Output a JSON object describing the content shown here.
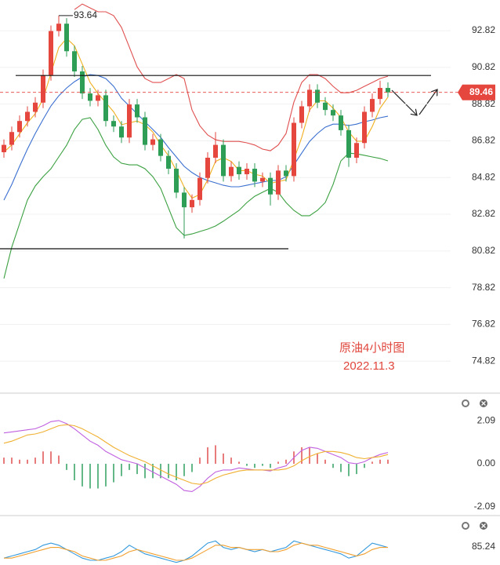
{
  "chart_data": [
    {
      "type": "candlestick",
      "annotations": [
        "原油4小时图",
        "2022.11.3"
      ],
      "max_marker": 93.64,
      "last_price": 89.46,
      "levels": [
        90.38,
        80.94
      ],
      "ylim": [
        73.12,
        94.49
      ],
      "yticks": [
        92.82,
        90.82,
        88.82,
        86.82,
        84.82,
        82.82,
        80.82,
        78.82,
        76.82,
        74.82
      ],
      "grid": true,
      "up_color": "#e5463e",
      "down_color": "#2e9e57",
      "price_color": "#e5463e",
      "candles": [
        [
          86.2,
          86.9,
          85.9,
          86.6
        ],
        [
          86.6,
          87.6,
          86.3,
          87.3
        ],
        [
          87.3,
          88.2,
          87.0,
          87.9
        ],
        [
          87.9,
          88.7,
          87.6,
          88.4
        ],
        [
          88.4,
          89.2,
          88.1,
          88.9
        ],
        [
          88.9,
          90.7,
          88.6,
          90.4
        ],
        [
          90.4,
          93.1,
          90.1,
          92.8
        ],
        [
          92.8,
          93.64,
          92.5,
          93.2
        ],
        [
          93.2,
          93.5,
          91.4,
          91.7
        ],
        [
          91.7,
          92.0,
          90.3,
          90.6
        ],
        [
          90.6,
          90.9,
          89.1,
          89.4
        ],
        [
          89.4,
          89.7,
          88.7,
          89.0
        ],
        [
          89.0,
          89.6,
          88.7,
          89.3
        ],
        [
          89.3,
          89.6,
          87.6,
          87.9
        ],
        [
          87.9,
          88.2,
          87.3,
          87.6
        ],
        [
          87.6,
          87.9,
          86.7,
          87.0
        ],
        [
          87.0,
          89.1,
          86.7,
          88.8
        ],
        [
          88.8,
          89.1,
          87.8,
          88.1
        ],
        [
          88.1,
          88.4,
          86.3,
          86.6
        ],
        [
          86.6,
          87.2,
          86.3,
          86.9
        ],
        [
          86.9,
          87.2,
          85.7,
          86.0
        ],
        [
          86.0,
          86.3,
          85.0,
          85.3
        ],
        [
          85.3,
          85.6,
          83.7,
          84.0
        ],
        [
          84.0,
          84.3,
          81.5,
          83.2
        ],
        [
          83.2,
          83.9,
          82.9,
          83.6
        ],
        [
          83.6,
          85.1,
          83.3,
          84.8
        ],
        [
          84.8,
          86.2,
          84.5,
          85.9
        ],
        [
          85.9,
          87.3,
          85.6,
          86.6
        ],
        [
          86.6,
          86.9,
          84.6,
          84.9
        ],
        [
          84.9,
          85.7,
          84.6,
          85.4
        ],
        [
          85.4,
          85.7,
          84.7,
          85.0
        ],
        [
          85.0,
          85.6,
          84.7,
          85.3
        ],
        [
          85.3,
          85.6,
          84.3,
          84.6
        ],
        [
          84.6,
          85.1,
          84.3,
          84.8
        ],
        [
          84.8,
          85.1,
          83.3,
          83.9
        ],
        [
          83.9,
          85.5,
          83.6,
          85.2
        ],
        [
          85.2,
          85.5,
          84.6,
          84.9
        ],
        [
          84.9,
          88.1,
          84.6,
          87.8
        ],
        [
          87.8,
          89.0,
          87.5,
          88.7
        ],
        [
          88.7,
          89.9,
          88.4,
          89.6
        ],
        [
          89.6,
          89.9,
          88.6,
          88.9
        ],
        [
          88.9,
          89.2,
          88.2,
          88.5
        ],
        [
          88.5,
          88.8,
          87.9,
          88.2
        ],
        [
          88.2,
          88.5,
          87.1,
          87.4
        ],
        [
          87.4,
          87.7,
          85.4,
          85.9
        ],
        [
          85.9,
          87.0,
          85.6,
          86.7
        ],
        [
          86.7,
          88.7,
          86.4,
          88.4
        ],
        [
          88.4,
          89.4,
          88.1,
          89.1
        ],
        [
          89.1,
          90.1,
          88.8,
          89.7
        ],
        [
          89.7,
          90.0,
          89.2,
          89.46
        ]
      ],
      "series": [
        {
          "color": "#e05050",
          "values": [
            null,
            null,
            null,
            null,
            null,
            null,
            null,
            null,
            null,
            93.97,
            94.27,
            94.06,
            93.85,
            93.85,
            93.64,
            93.0,
            91.93,
            90.85,
            90.21,
            90.0,
            90.0,
            90.21,
            90.43,
            90.21,
            88.5,
            87.64,
            87.14,
            86.88,
            86.79,
            86.79,
            86.79,
            86.71,
            86.59,
            86.37,
            86.28,
            86.59,
            87.22,
            88.93,
            90.0,
            90.43,
            90.43,
            90.21,
            89.79,
            89.44,
            89.44,
            89.57,
            89.79,
            90.0,
            90.21,
            90.34
          ]
        },
        {
          "color": "#3a6fd0",
          "values": [
            83.59,
            84.44,
            85.43,
            86.37,
            87.22,
            87.99,
            88.72,
            89.27,
            89.7,
            90.04,
            90.3,
            90.43,
            90.38,
            90.21,
            89.79,
            89.14,
            88.72,
            88.29,
            87.86,
            87.44,
            87.01,
            86.45,
            85.94,
            85.43,
            85.09,
            84.83,
            84.66,
            84.53,
            84.4,
            84.32,
            84.32,
            84.4,
            84.49,
            84.57,
            84.66,
            84.66,
            84.87,
            85.51,
            86.15,
            86.79,
            87.22,
            87.56,
            87.73,
            87.73,
            87.65,
            87.73,
            87.86,
            87.95,
            88.08,
            88.16
          ]
        },
        {
          "color": "#3aa040",
          "values": [
            79.32,
            81.03,
            82.31,
            83.59,
            84.36,
            84.87,
            85.3,
            85.94,
            86.58,
            87.44,
            87.99,
            88.08,
            87.44,
            86.58,
            85.94,
            85.6,
            85.51,
            85.51,
            85.3,
            84.87,
            84.23,
            83.16,
            82.09,
            81.67,
            81.75,
            81.88,
            82.01,
            82.18,
            82.44,
            82.74,
            83.03,
            83.46,
            83.8,
            84.02,
            84.23,
            84.02,
            83.46,
            83.03,
            82.74,
            82.74,
            83.03,
            83.46,
            84.44,
            85.73,
            86.15,
            86.11,
            86.03,
            85.94,
            85.86,
            85.73
          ]
        },
        {
          "color": "#f0b020",
          "values": [
            86.2,
            86.6,
            87.2,
            87.8,
            88.3,
            89.1,
            90.5,
            91.9,
            92.4,
            92.0,
            91.0,
            90.0,
            89.4,
            88.9,
            88.4,
            87.7,
            87.8,
            87.9,
            87.7,
            87.3,
            86.6,
            86.0,
            85.2,
            84.3,
            83.7,
            83.9,
            84.7,
            85.7,
            85.9,
            85.7,
            85.2,
            85.2,
            85.0,
            84.9,
            84.5,
            84.6,
            84.7,
            85.8,
            87.0,
            88.5,
            89.0,
            89.0,
            88.6,
            88.1,
            87.3,
            86.8,
            86.8,
            87.6,
            88.6,
            89.2
          ]
        }
      ]
    },
    {
      "type": "macd",
      "ylim": [
        -2.44,
        3.28
      ],
      "yticks": [
        2.09,
        {
          "value": 0,
          "label": "0.00"
        },
        -2.09
      ],
      "up_color": "#e05050",
      "down_color": "#30a060",
      "histogram": [
        0.3,
        0.3,
        0.2,
        0.2,
        0.3,
        0.6,
        0.6,
        0.4,
        -0.3,
        -0.8,
        -1.1,
        -1.2,
        -1.2,
        -1.1,
        -0.9,
        -0.6,
        -0.3,
        -0.5,
        -0.7,
        -0.7,
        -0.7,
        -0.7,
        -0.8,
        -0.6,
        -0.4,
        0.3,
        0.8,
        0.9,
        0.5,
        0.3,
        0.1,
        -0.1,
        -0.2,
        -0.1,
        -0.2,
        0.1,
        0.2,
        0.6,
        0.8,
        0.8,
        0.5,
        0.2,
        -0.2,
        -0.4,
        -0.6,
        -0.5,
        -0.2,
        0.1,
        0.2,
        0.2
      ],
      "series": [
        {
          "color": "#c060e0",
          "values": [
            1.5,
            1.55,
            1.6,
            1.65,
            1.7,
            1.85,
            2.05,
            2.1,
            1.95,
            1.7,
            1.4,
            1.1,
            0.9,
            0.6,
            0.4,
            0.2,
            0.1,
            0,
            -0.2,
            -0.4,
            -0.6,
            -0.8,
            -1.0,
            -1.3,
            -1.35,
            -1.1,
            -0.7,
            -0.4,
            -0.3,
            -0.3,
            -0.2,
            -0.25,
            -0.3,
            -0.3,
            -0.35,
            -0.2,
            -0.1,
            0.3,
            0.65,
            0.8,
            0.75,
            0.6,
            0.45,
            0.3,
            0.05,
            0,
            0.1,
            0.3,
            0.45,
            0.55
          ]
        },
        {
          "color": "#f0b030",
          "values": [
            1.0,
            1.1,
            1.25,
            1.4,
            1.45,
            1.55,
            1.7,
            1.85,
            1.9,
            1.85,
            1.7,
            1.5,
            1.3,
            1.05,
            0.8,
            0.6,
            0.4,
            0.25,
            0.1,
            -0.1,
            -0.3,
            -0.5,
            -0.65,
            -0.8,
            -0.95,
            -1.0,
            -0.9,
            -0.7,
            -0.55,
            -0.45,
            -0.35,
            -0.3,
            -0.3,
            -0.3,
            -0.3,
            -0.3,
            -0.25,
            -0.1,
            0.15,
            0.35,
            0.5,
            0.6,
            0.6,
            0.55,
            0.45,
            0.3,
            0.25,
            0.3,
            0.35,
            0.45
          ]
        }
      ]
    },
    {
      "type": "line",
      "ylim": [
        76.8,
        98
      ],
      "yticks": [
        85.24
      ],
      "series": [
        {
          "color": "#3399dd",
          "values": [
            80,
            81,
            82,
            83,
            84,
            86,
            87,
            86,
            84,
            82,
            80,
            79,
            79,
            80,
            81,
            83,
            86,
            84,
            82,
            81,
            80,
            79,
            78,
            79,
            81,
            84,
            87,
            88,
            85,
            84,
            85,
            84,
            83,
            84,
            83,
            84,
            85,
            88,
            87,
            86,
            85,
            84,
            83,
            82,
            80,
            81,
            84,
            87,
            86,
            85
          ]
        },
        {
          "color": "#f0a030",
          "values": [
            80,
            80,
            81,
            82,
            83,
            84,
            85,
            85,
            84,
            83,
            81,
            80,
            79,
            79,
            80,
            81,
            83,
            84,
            83,
            82,
            81,
            80,
            79,
            79,
            80,
            82,
            84,
            86,
            86,
            85,
            85,
            84,
            84,
            84,
            83,
            83,
            84,
            86,
            87,
            86,
            86,
            85,
            84,
            83,
            82,
            81,
            82,
            84,
            85,
            85
          ]
        }
      ]
    }
  ]
}
